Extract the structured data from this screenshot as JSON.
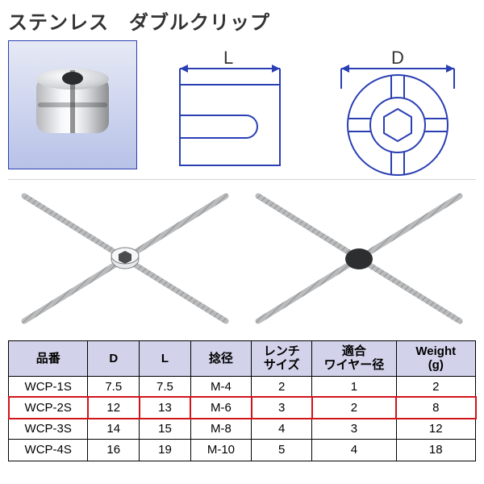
{
  "title": "ステンレス　ダブルクリップ",
  "dimensions": {
    "side_label": "L",
    "top_label": "D"
  },
  "drawing_style": {
    "stroke": "#2a3fb3",
    "stroke_width": 2,
    "arrow_fill": "#2a3fb3",
    "label_color": "#333333",
    "label_fontsize": 22
  },
  "wirenet": {
    "wire_color": "#9a9c9e",
    "wire_texture": "#c0c2c4"
  },
  "table": {
    "header_bg": "#d2d3ea",
    "highlight_color": "#d1131a",
    "highlight_index": 1,
    "columns": [
      {
        "key": "part",
        "label": "品番"
      },
      {
        "key": "d",
        "label": "D"
      },
      {
        "key": "l",
        "label": "L"
      },
      {
        "key": "thread",
        "label": "捻径"
      },
      {
        "key": "wrench",
        "label": "レンチ\nサイズ"
      },
      {
        "key": "wire",
        "label": "適合\nワイヤー径"
      },
      {
        "key": "weight",
        "label": "Weight\n(g)"
      }
    ],
    "rows": [
      {
        "part": "WCP-1S",
        "d": "7.5",
        "l": "7.5",
        "thread": "M-4",
        "wrench": "2",
        "wire": "1",
        "weight": "2"
      },
      {
        "part": "WCP-2S",
        "d": "12",
        "l": "13",
        "thread": "M-6",
        "wrench": "3",
        "wire": "2",
        "weight": "8"
      },
      {
        "part": "WCP-3S",
        "d": "14",
        "l": "15",
        "thread": "M-8",
        "wrench": "4",
        "wire": "3",
        "weight": "12"
      },
      {
        "part": "WCP-4S",
        "d": "16",
        "l": "19",
        "thread": "M-10",
        "wrench": "5",
        "wire": "4",
        "weight": "18"
      }
    ]
  }
}
